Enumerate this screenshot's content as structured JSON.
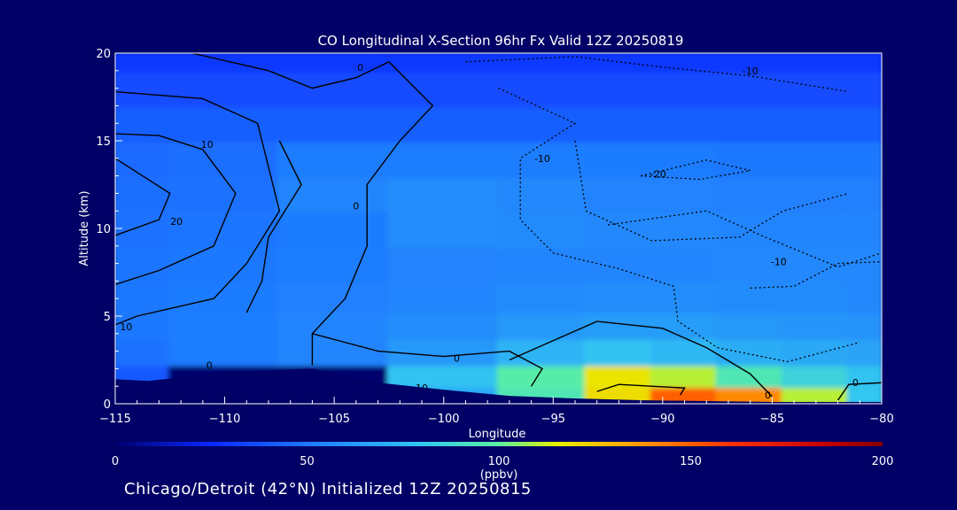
{
  "chart_data": {
    "type": "heatmap",
    "title": "CO Longitudinal X-Section 96hr  Fx Valid 12Z 20250819",
    "xlabel": "Longitude",
    "ylabel": "Altitude (km)",
    "xlim": [
      -115,
      -80
    ],
    "ylim": [
      0,
      20
    ],
    "x_ticks": [
      -115,
      -110,
      -105,
      -100,
      -95,
      -90,
      -85,
      -80
    ],
    "x_tick_labels": [
      "−115",
      "−110",
      "−105",
      "−100",
      "−95",
      "−90",
      "−85",
      "−80"
    ],
    "y_ticks": [
      0,
      5,
      10,
      15,
      20
    ],
    "y_tick_labels": [
      "0",
      "5",
      "10",
      "15",
      "20"
    ],
    "colorbar": {
      "min": 0,
      "max": 200,
      "ticks": [
        0,
        50,
        100,
        150,
        200
      ],
      "tick_labels": [
        "0",
        "50",
        "100",
        "150",
        "200"
      ],
      "units": "(ppbv)",
      "stops": [
        {
          "v": 0,
          "c": "#00006e"
        },
        {
          "v": 25,
          "c": "#0a28ff"
        },
        {
          "v": 50,
          "c": "#1e78ff"
        },
        {
          "v": 80,
          "c": "#32c8f0"
        },
        {
          "v": 100,
          "c": "#5af0a0"
        },
        {
          "v": 115,
          "c": "#e6f000"
        },
        {
          "v": 135,
          "c": "#ffa000"
        },
        {
          "v": 160,
          "c": "#ff3200"
        },
        {
          "v": 185,
          "c": "#c80000"
        },
        {
          "v": 200,
          "c": "#820000"
        }
      ]
    },
    "co_field": {
      "levels_km": [
        0.5,
        1.5,
        3,
        4.5,
        6,
        8,
        10,
        12,
        14,
        16,
        18,
        20
      ],
      "longitudes": [
        -115,
        -110,
        -105,
        -100,
        -95,
        -92,
        -89,
        -86,
        -83,
        -80
      ],
      "values": [
        [
          0,
          0,
          0,
          68,
          95,
          120,
          150,
          140,
          110,
          80
        ],
        [
          40,
          0,
          0,
          78,
          98,
          118,
          110,
          95,
          85,
          78
        ],
        [
          48,
          52,
          55,
          62,
          72,
          78,
          74,
          70,
          68,
          66
        ],
        [
          50,
          52,
          55,
          58,
          62,
          64,
          64,
          62,
          61,
          60
        ],
        [
          50,
          51,
          53,
          55,
          57,
          58,
          58,
          57,
          57,
          56
        ],
        [
          49,
          50,
          52,
          54,
          55,
          55,
          55,
          56,
          56,
          56
        ],
        [
          48,
          49,
          51,
          58,
          57,
          56,
          56,
          55,
          55,
          55
        ],
        [
          47,
          48,
          55,
          58,
          56,
          54,
          54,
          53,
          53,
          53
        ],
        [
          46,
          47,
          52,
          52,
          52,
          51,
          51,
          50,
          50,
          50
        ],
        [
          42,
          42,
          42,
          42,
          42,
          42,
          42,
          42,
          42,
          42
        ],
        [
          36,
          36,
          36,
          36,
          36,
          36,
          36,
          36,
          36,
          36
        ],
        [
          30,
          30,
          30,
          30,
          30,
          30,
          30,
          30,
          30,
          30
        ]
      ]
    },
    "terrain_km": [
      {
        "lon": -115,
        "alt": 1.4
      },
      {
        "lon": -113.5,
        "alt": 1.3
      },
      {
        "lon": -112,
        "alt": 1.5
      },
      {
        "lon": -110,
        "alt": 1.8
      },
      {
        "lon": -108,
        "alt": 1.9
      },
      {
        "lon": -106,
        "alt": 2.0
      },
      {
        "lon": -104.5,
        "alt": 1.6
      },
      {
        "lon": -103,
        "alt": 1.2
      },
      {
        "lon": -100,
        "alt": 0.8
      },
      {
        "lon": -97,
        "alt": 0.45
      },
      {
        "lon": -94,
        "alt": 0.3
      },
      {
        "lon": -91,
        "alt": 0.2
      },
      {
        "lon": -88,
        "alt": 0.15
      },
      {
        "lon": -85,
        "alt": 0.1
      },
      {
        "lon": -82,
        "alt": 0.1
      },
      {
        "lon": -80,
        "alt": 0.1
      }
    ],
    "contour_labels": [
      "0",
      "10",
      "20",
      "-10",
      "-20"
    ]
  },
  "footer": "Chicago/Detroit (42°N) Initialized 12Z 20250815"
}
